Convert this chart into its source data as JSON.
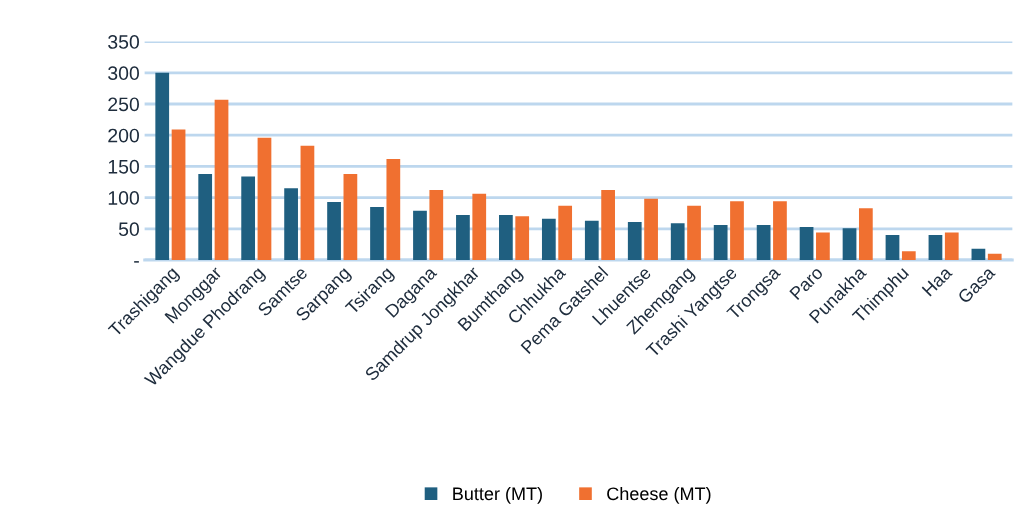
{
  "chart_data": {
    "type": "bar",
    "categories": [
      "Trashigang",
      "Monggar",
      "Wangdue Phodrang",
      "Samtse",
      "Sarpang",
      "Tsirang",
      "Dagana",
      "Samdrup Jongkhar",
      "Bumthang",
      "Chhukha",
      "Pema Gatshel",
      "Lhuentse",
      "Zhemgang",
      "Trashi Yangtse",
      "Trongsa",
      "Paro",
      "Punakha",
      "Thimphu",
      "Haa",
      "Gasa"
    ],
    "series": [
      {
        "name": "Butter (MT)",
        "color": "#1f5f80",
        "values": [
          300,
          138,
          134,
          115,
          93,
          85,
          79,
          72,
          72,
          66,
          63,
          61,
          59,
          56,
          56,
          53,
          51,
          40,
          40,
          18
        ]
      },
      {
        "name": "Cheese (MT)",
        "color": "#f07030",
        "values": [
          209,
          257,
          196,
          183,
          138,
          162,
          112,
          106,
          70,
          87,
          112,
          98,
          87,
          94,
          94,
          44,
          83,
          14,
          44,
          10
        ]
      }
    ],
    "ylim": [
      0,
      350
    ],
    "yticks": [
      {
        "value": 0,
        "label": "-"
      },
      50,
      100,
      150,
      200,
      250,
      300,
      350
    ],
    "grid": "y",
    "legend": "bottom"
  }
}
